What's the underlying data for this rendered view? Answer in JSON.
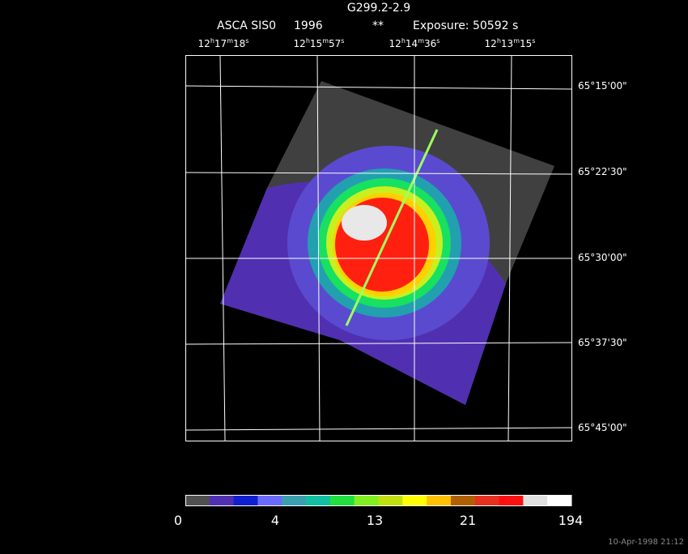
{
  "header": {
    "title": "G299.2-2.9",
    "instrument": "ASCA SIS0",
    "year": "1996",
    "flag": "**",
    "exposure": "Exposure: 50592 s"
  },
  "ra_labels": [
    [
      "12",
      "h",
      "17",
      "m",
      "18",
      "s"
    ],
    [
      "12",
      "h",
      "15",
      "m",
      "57",
      "s"
    ],
    [
      "12",
      "h",
      "14",
      "m",
      "36",
      "s"
    ],
    [
      "12",
      "h",
      "13",
      "m",
      "15",
      "s"
    ]
  ],
  "dec_labels": [
    "65°15'00\"",
    "65°22'30\"",
    "65°30'00\"",
    "65°37'30\"",
    "65°45'00\""
  ],
  "colorbar_labels": [
    "0",
    "4",
    "13",
    "21",
    "194"
  ],
  "timestamp": "10-Apr-1998 21:12"
}
